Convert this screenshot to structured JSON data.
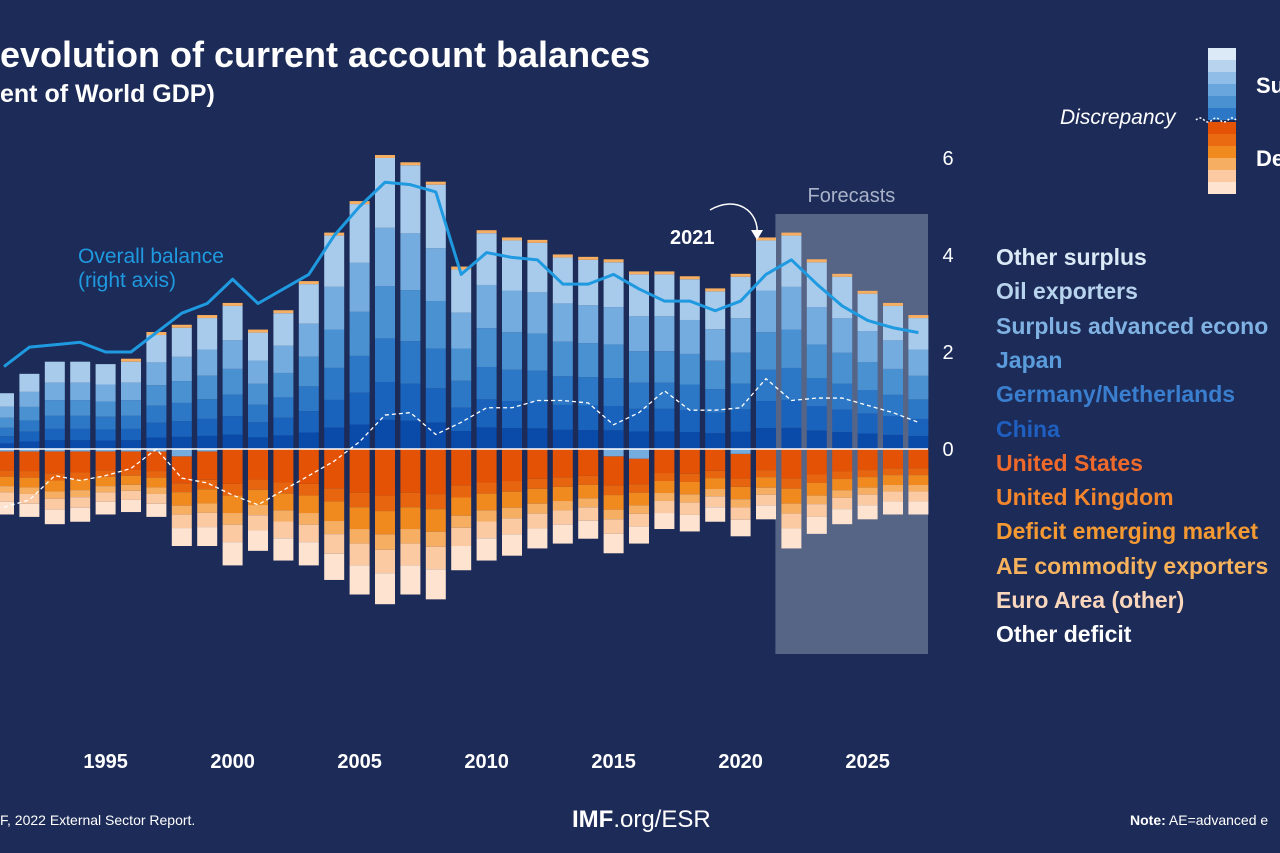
{
  "header": {
    "title": "evolution of current account balances",
    "subtitle": "ent of World GDP)"
  },
  "key": {
    "surplus_label": "Su",
    "deficit_label": "De",
    "discrepancy_label": "Discrepancy"
  },
  "annotations": {
    "overall_balance": [
      "Overall balance",
      "(right axis)"
    ],
    "year_marker": "2021",
    "forecasts": "Forecasts"
  },
  "footer": {
    "source": "F, 2022 External Sector Report.",
    "site_bold": "IMF",
    "site_rest": ".org/ESR",
    "note_bold": "Note:",
    "note_rest": "AE=advanced e"
  },
  "colors": {
    "background": "#1c2b57",
    "surplus": [
      "#0a4aa8",
      "#1a63bd",
      "#2c78c6",
      "#4a91d2",
      "#75acdf",
      "#a8cbec"
    ],
    "deficit": [
      "#e35205",
      "#e8650f",
      "#f08a1f",
      "#f6ae63",
      "#fbc9a2",
      "#fde3d0"
    ],
    "line": "#1f9ae0",
    "forecast_band": "#5d6a8c"
  },
  "chart_data": {
    "type": "bar",
    "stacked": true,
    "x_ticks": [
      "1995",
      "2000",
      "2005",
      "2010",
      "2015",
      "2020",
      "2025"
    ],
    "y_right_ticks": [
      "6",
      "4",
      "2",
      "0"
    ],
    "forecast_start": 2022,
    "legend": [
      {
        "name": "Other surplus",
        "color": "#dce9f6"
      },
      {
        "name": "Oil exporters",
        "color": "#b8d3ee"
      },
      {
        "name": "Surplus advanced econo",
        "color": "#7fb2e2"
      },
      {
        "name": "Japan",
        "color": "#5b9ddc"
      },
      {
        "name": "Germany/Netherlands",
        "color": "#3a7fcf"
      },
      {
        "name": "China",
        "color": "#1f5fc0"
      },
      {
        "name": "United States",
        "color": "#ef6a2a"
      },
      {
        "name": "United Kingdom",
        "color": "#f3862d"
      },
      {
        "name": "Deficit emerging market",
        "color": "#f59a32"
      },
      {
        "name": "AE commodity exporters",
        "color": "#f6b25c"
      },
      {
        "name": "Euro Area (other)",
        "color": "#fad6bc"
      },
      {
        "name": "Other deficit",
        "color": "#ffffff"
      }
    ],
    "series_order_surplus": [
      "China",
      "Germany/Netherlands",
      "Japan",
      "Surplus advanced econo",
      "Oil exporters",
      "Other surplus"
    ],
    "series_order_deficit": [
      "United States",
      "United Kingdom",
      "Deficit emerging market",
      "AE commodity exporters",
      "Euro Area (other)",
      "Other deficit"
    ],
    "years": [
      1991,
      1992,
      1993,
      1994,
      1995,
      1996,
      1997,
      1998,
      1999,
      2000,
      2001,
      2002,
      2003,
      2004,
      2005,
      2006,
      2007,
      2008,
      2009,
      2010,
      2011,
      2012,
      2013,
      2014,
      2015,
      2016,
      2017,
      2018,
      2019,
      2020,
      2021,
      2022,
      2023,
      2024,
      2025,
      2026,
      2027
    ],
    "surplus_totals": [
      1.15,
      1.55,
      1.8,
      1.8,
      1.75,
      1.8,
      2.35,
      2.5,
      2.7,
      2.95,
      2.4,
      2.8,
      3.4,
      4.4,
      5.05,
      6.0,
      5.85,
      5.45,
      3.7,
      4.45,
      4.3,
      4.25,
      3.95,
      3.9,
      3.85,
      3.6,
      3.6,
      3.5,
      3.25,
      3.55,
      4.3,
      4.4,
      3.85,
      3.55,
      3.2,
      2.95,
      2.7
    ],
    "deficit_totals": [
      -1.3,
      -1.35,
      -1.5,
      -1.45,
      -1.3,
      -1.25,
      -1.35,
      -1.85,
      -1.95,
      -2.4,
      -2.1,
      -2.3,
      -2.4,
      -2.7,
      -3.0,
      -3.2,
      -3.0,
      -3.1,
      -2.5,
      -2.3,
      -2.2,
      -2.05,
      -1.95,
      -1.85,
      -2.0,
      -1.75,
      -1.65,
      -1.7,
      -1.5,
      -1.7,
      -1.45,
      -2.05,
      -1.75,
      -1.55,
      -1.45,
      -1.35,
      -1.35
    ],
    "deficit_base_shifts": [
      0.05,
      0.05,
      0.05,
      0.05,
      0.05,
      0.05,
      0.05,
      0.15,
      0.05,
      0,
      0,
      0,
      0,
      0,
      0,
      0,
      0,
      0,
      0,
      0,
      0,
      0,
      0,
      0,
      0.15,
      0.2,
      0,
      0,
      0,
      0.1,
      0,
      0,
      0,
      0,
      0,
      0,
      0
    ],
    "overall_balance": [
      1.7,
      2.1,
      2.15,
      2.2,
      2.0,
      2.0,
      2.4,
      2.8,
      3.0,
      3.5,
      3.0,
      3.3,
      3.6,
      4.4,
      5.0,
      5.5,
      5.45,
      5.3,
      3.6,
      4.05,
      3.95,
      3.9,
      3.4,
      3.4,
      3.6,
      3.3,
      3.05,
      3.05,
      2.85,
      3.05,
      3.6,
      3.9,
      3.4,
      2.95,
      2.65,
      2.5,
      2.4
    ],
    "discrepancy": [
      -1.2,
      -1.05,
      -0.55,
      -0.65,
      -0.55,
      -0.4,
      0.0,
      -0.6,
      -0.7,
      -0.95,
      -1.15,
      -0.85,
      -0.55,
      -0.25,
      0.15,
      0.7,
      0.75,
      0.3,
      0.55,
      0.85,
      0.85,
      1.0,
      1.0,
      0.95,
      0.5,
      0.75,
      1.2,
      0.8,
      0.8,
      0.85,
      1.45,
      1.0,
      1.05,
      1.05,
      0.9,
      0.75,
      0.55
    ]
  }
}
